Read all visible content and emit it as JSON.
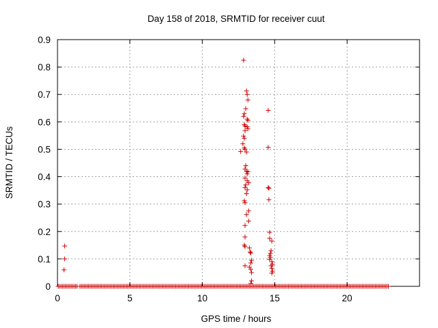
{
  "chart_data": {
    "type": "scatter",
    "title": "Day 158 of 2018, SRMTID for receiver cuut",
    "xlabel": "GPS time / hours",
    "ylabel": "SRMTID / TECUs",
    "xlim": [
      0,
      25
    ],
    "ylim": [
      0,
      0.9
    ],
    "xticks": [
      0,
      5,
      10,
      15,
      20
    ],
    "yticks": [
      0,
      0.1,
      0.2,
      0.3,
      0.4,
      0.5,
      0.6,
      0.7,
      0.8,
      0.9
    ],
    "xtick_labels": [
      "0",
      "5",
      "10",
      "15",
      "20"
    ],
    "ytick_labels": [
      "0",
      "0.1",
      "0.2",
      "0.3",
      "0.4",
      "0.5",
      "0.6",
      "0.7",
      "0.8",
      "0.9"
    ],
    "grid": true,
    "marker": "+",
    "color": "#cc0000",
    "baseline": {
      "y": 0,
      "x_start": 0.05,
      "x_end": 22.85,
      "x_step": 0.1,
      "gaps": [
        [
          1.4,
          1.5
        ]
      ]
    },
    "series": [
      {
        "name": "SRMTID",
        "points": [
          [
            0.5,
            0.147
          ],
          [
            0.5,
            0.1
          ],
          [
            0.45,
            0.06
          ],
          [
            12.85,
            0.825
          ],
          [
            13.05,
            0.713
          ],
          [
            13.1,
            0.7
          ],
          [
            13.15,
            0.68
          ],
          [
            13.0,
            0.648
          ],
          [
            12.9,
            0.63
          ],
          [
            12.85,
            0.62
          ],
          [
            13.1,
            0.61
          ],
          [
            13.15,
            0.605
          ],
          [
            12.9,
            0.59
          ],
          [
            12.95,
            0.585
          ],
          [
            13.1,
            0.582
          ],
          [
            13.15,
            0.575
          ],
          [
            12.95,
            0.568
          ],
          [
            12.85,
            0.548
          ],
          [
            12.9,
            0.54
          ],
          [
            12.8,
            0.52
          ],
          [
            12.9,
            0.505
          ],
          [
            12.95,
            0.5
          ],
          [
            12.65,
            0.492
          ],
          [
            13.05,
            0.49
          ],
          [
            13.0,
            0.44
          ],
          [
            12.95,
            0.428
          ],
          [
            13.05,
            0.42
          ],
          [
            13.15,
            0.418
          ],
          [
            13.1,
            0.41
          ],
          [
            12.95,
            0.395
          ],
          [
            13.1,
            0.385
          ],
          [
            13.2,
            0.378
          ],
          [
            13.0,
            0.37
          ],
          [
            12.95,
            0.36
          ],
          [
            13.1,
            0.352
          ],
          [
            13.05,
            0.338
          ],
          [
            12.9,
            0.312
          ],
          [
            12.95,
            0.305
          ],
          [
            13.2,
            0.275
          ],
          [
            13.05,
            0.262
          ],
          [
            13.2,
            0.238
          ],
          [
            12.95,
            0.222
          ],
          [
            12.95,
            0.18
          ],
          [
            12.9,
            0.15
          ],
          [
            12.95,
            0.145
          ],
          [
            13.25,
            0.14
          ],
          [
            13.3,
            0.125
          ],
          [
            13.35,
            0.122
          ],
          [
            13.4,
            0.095
          ],
          [
            13.35,
            0.085
          ],
          [
            12.95,
            0.075
          ],
          [
            13.25,
            0.07
          ],
          [
            13.35,
            0.062
          ],
          [
            13.4,
            0.05
          ],
          [
            13.4,
            0.02
          ],
          [
            13.35,
            0.01
          ],
          [
            14.55,
            0.642
          ],
          [
            14.55,
            0.507
          ],
          [
            14.55,
            0.36
          ],
          [
            14.6,
            0.358
          ],
          [
            14.6,
            0.316
          ],
          [
            14.65,
            0.197
          ],
          [
            14.65,
            0.175
          ],
          [
            14.8,
            0.165
          ],
          [
            14.75,
            0.13
          ],
          [
            14.7,
            0.12
          ],
          [
            14.65,
            0.112
          ],
          [
            14.7,
            0.105
          ],
          [
            14.65,
            0.098
          ],
          [
            14.8,
            0.09
          ],
          [
            14.85,
            0.08
          ],
          [
            14.75,
            0.075
          ],
          [
            14.8,
            0.065
          ],
          [
            14.85,
            0.055
          ],
          [
            14.8,
            0.048
          ]
        ]
      }
    ]
  }
}
